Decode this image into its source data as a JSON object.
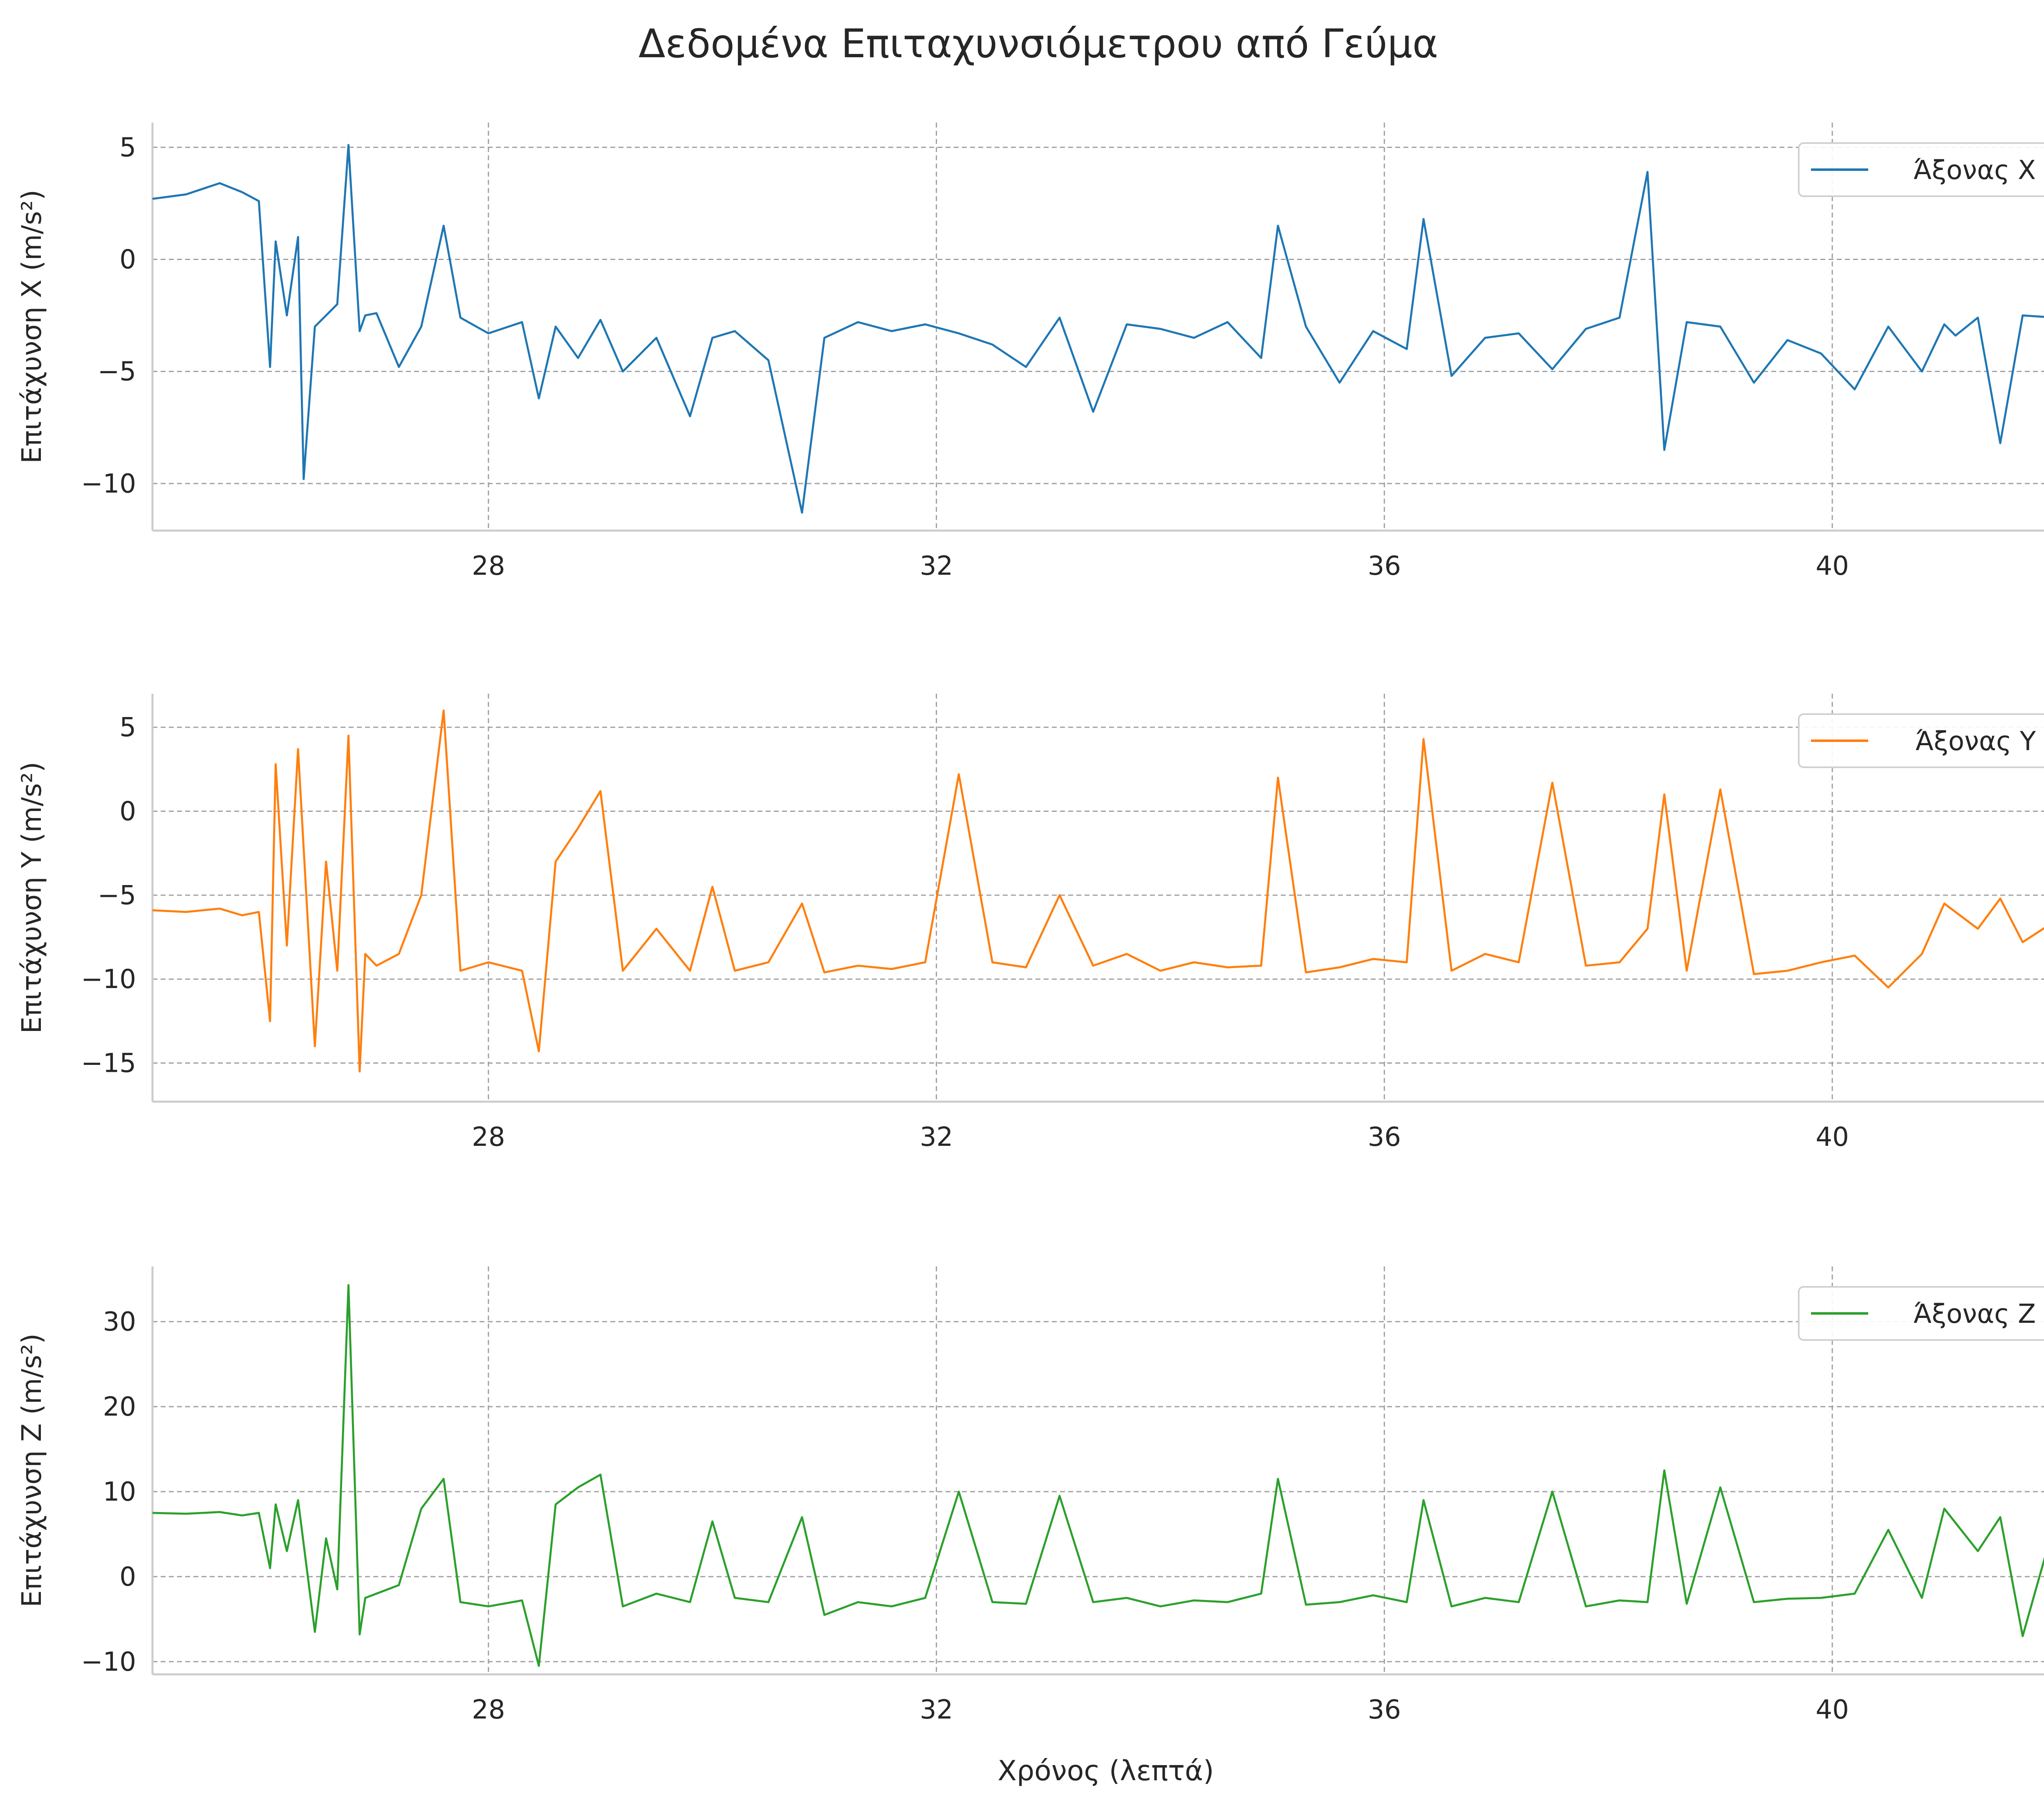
{
  "title": "Δεδομένα Επιταχυνσιόμετρου από Γεύμα",
  "xlabel": "Χρόνος (λεπτά)",
  "chart_data": [
    {
      "type": "line",
      "ylabel": "Επιτάχυνση X (m/s²)",
      "xlim": [
        25.0,
        42.0
      ],
      "ylim": [
        -12.1,
        6.1
      ],
      "x_ticks": [
        28,
        32,
        36,
        40
      ],
      "y_ticks": [
        5,
        0,
        -5,
        -10
      ],
      "grid": true,
      "legend_position": "top-right",
      "series": [
        {
          "name": "Άξονας X",
          "color": "#1f77b4",
          "x": [
            25.0,
            25.3,
            25.6,
            25.8,
            25.95,
            26.05,
            26.1,
            26.2,
            26.3,
            26.35,
            26.45,
            26.55,
            26.65,
            26.75,
            26.85,
            26.9,
            27.0,
            27.2,
            27.4,
            27.6,
            27.75,
            28.0,
            28.3,
            28.45,
            28.6,
            28.8,
            29.0,
            29.2,
            29.5,
            29.8,
            30.0,
            30.2,
            30.5,
            30.8,
            31.0,
            31.3,
            31.6,
            31.9,
            32.2,
            32.5,
            32.8,
            33.1,
            33.4,
            33.7,
            34.0,
            34.3,
            34.6,
            34.9,
            35.05,
            35.3,
            35.6,
            35.9,
            36.2,
            36.35,
            36.6,
            36.9,
            37.2,
            37.5,
            37.8,
            38.1,
            38.35,
            38.5,
            38.7,
            39.0,
            39.3,
            39.6,
            39.9,
            40.2,
            40.5,
            40.8,
            41.0,
            41.1,
            41.3,
            41.5,
            41.7,
            42.0
          ],
          "y": [
            2.7,
            2.9,
            3.4,
            3.0,
            2.6,
            -4.8,
            0.8,
            -2.5,
            1.0,
            -9.8,
            -3.0,
            -2.5,
            -2.0,
            5.1,
            -3.2,
            -2.5,
            -2.4,
            -4.8,
            -3.0,
            1.5,
            -2.6,
            -3.3,
            -2.8,
            -6.2,
            -3.0,
            -4.4,
            -2.7,
            -5.0,
            -3.5,
            -7.0,
            -3.5,
            -3.2,
            -4.5,
            -11.3,
            -3.5,
            -2.8,
            -3.2,
            -2.9,
            -3.3,
            -3.8,
            -4.8,
            -2.6,
            -6.8,
            -2.9,
            -3.1,
            -3.5,
            -2.8,
            -4.4,
            1.5,
            -3.0,
            -5.5,
            -3.2,
            -4.0,
            1.8,
            -5.2,
            -3.5,
            -3.3,
            -4.9,
            -3.1,
            -2.6,
            3.9,
            -8.5,
            -2.8,
            -3.0,
            -5.5,
            -3.6,
            -4.2,
            -5.8,
            -3.0,
            -5.0,
            -2.9,
            -3.4,
            -2.6,
            -8.2,
            -2.5,
            -2.6
          ]
        }
      ]
    },
    {
      "type": "line",
      "ylabel": "Επιτάχυνση Y (m/s²)",
      "xlim": [
        25.0,
        42.0
      ],
      "ylim": [
        -17.3,
        7.0
      ],
      "x_ticks": [
        28,
        32,
        36,
        40
      ],
      "y_ticks": [
        5,
        0,
        -5,
        -10,
        -15
      ],
      "grid": true,
      "legend_position": "top-right",
      "series": [
        {
          "name": "Άξονας Y",
          "color": "#ff7f0e",
          "x": [
            25.0,
            25.3,
            25.6,
            25.8,
            25.95,
            26.05,
            26.1,
            26.2,
            26.3,
            26.45,
            26.55,
            26.65,
            26.75,
            26.85,
            26.9,
            27.0,
            27.2,
            27.4,
            27.6,
            27.75,
            28.0,
            28.3,
            28.45,
            28.6,
            28.8,
            29.0,
            29.2,
            29.5,
            29.8,
            30.0,
            30.2,
            30.5,
            30.8,
            31.0,
            31.3,
            31.6,
            31.9,
            32.2,
            32.5,
            32.8,
            33.1,
            33.4,
            33.7,
            34.0,
            34.3,
            34.6,
            34.9,
            35.05,
            35.3,
            35.6,
            35.9,
            36.2,
            36.35,
            36.6,
            36.9,
            37.2,
            37.5,
            37.8,
            38.1,
            38.35,
            38.5,
            38.7,
            39.0,
            39.3,
            39.6,
            39.9,
            40.2,
            40.5,
            40.8,
            41.0,
            41.3,
            41.5,
            41.7,
            42.0
          ],
          "y": [
            -5.9,
            -6.0,
            -5.8,
            -6.2,
            -6.0,
            -12.5,
            2.8,
            -8.0,
            3.7,
            -14.0,
            -3.0,
            -9.5,
            4.5,
            -15.5,
            -8.5,
            -9.2,
            -8.5,
            -5.0,
            6.0,
            -9.5,
            -9.0,
            -9.5,
            -14.3,
            -3.0,
            -1.0,
            1.2,
            -9.5,
            -7.0,
            -9.5,
            -4.5,
            -9.5,
            -9.0,
            -5.5,
            -9.6,
            -9.2,
            -9.4,
            -9.0,
            2.2,
            -9.0,
            -9.3,
            -5.0,
            -9.2,
            -8.5,
            -9.5,
            -9.0,
            -9.3,
            -9.2,
            2.0,
            -9.6,
            -9.3,
            -8.8,
            -9.0,
            4.3,
            -9.5,
            -8.5,
            -9.0,
            1.7,
            -9.2,
            -9.0,
            -7.0,
            1.0,
            -9.5,
            1.3,
            -9.7,
            -9.5,
            -9.0,
            -8.6,
            -10.5,
            -8.5,
            -5.5,
            -7.0,
            -5.2,
            -7.8,
            -6.5
          ]
        }
      ]
    },
    {
      "type": "line",
      "ylabel": "Επιτάχυνση Z (m/s²)",
      "xlim": [
        25.0,
        42.0
      ],
      "ylim": [
        -11.5,
        36.5
      ],
      "x_ticks": [
        28,
        32,
        36,
        40
      ],
      "y_ticks": [
        30,
        20,
        10,
        0,
        -10
      ],
      "grid": true,
      "legend_position": "top-right",
      "series": [
        {
          "name": "Άξονας Z",
          "color": "#2ca02c",
          "x": [
            25.0,
            25.3,
            25.6,
            25.8,
            25.95,
            26.05,
            26.1,
            26.2,
            26.3,
            26.45,
            26.55,
            26.65,
            26.75,
            26.85,
            26.9,
            27.0,
            27.2,
            27.4,
            27.6,
            27.75,
            28.0,
            28.3,
            28.45,
            28.6,
            28.8,
            29.0,
            29.2,
            29.5,
            29.8,
            30.0,
            30.2,
            30.5,
            30.8,
            31.0,
            31.3,
            31.6,
            31.9,
            32.2,
            32.5,
            32.8,
            33.1,
            33.4,
            33.7,
            34.0,
            34.3,
            34.6,
            34.9,
            35.05,
            35.3,
            35.6,
            35.9,
            36.2,
            36.35,
            36.6,
            36.9,
            37.2,
            37.5,
            37.8,
            38.1,
            38.35,
            38.5,
            38.7,
            39.0,
            39.3,
            39.6,
            39.9,
            40.2,
            40.5,
            40.8,
            41.0,
            41.3,
            41.5,
            41.7,
            42.0
          ],
          "y": [
            7.5,
            7.4,
            7.6,
            7.2,
            7.5,
            1.0,
            8.5,
            3.0,
            9.0,
            -6.5,
            4.5,
            -1.5,
            34.3,
            -6.8,
            -2.5,
            -2.0,
            -1.0,
            8.0,
            11.5,
            -3.0,
            -3.5,
            -2.8,
            -10.5,
            8.5,
            10.5,
            12.0,
            -3.5,
            -2.0,
            -3.0,
            6.5,
            -2.5,
            -3.0,
            7.0,
            -4.5,
            -3.0,
            -3.5,
            -2.5,
            10.0,
            -3.0,
            -3.2,
            9.5,
            -3.0,
            -2.5,
            -3.5,
            -2.8,
            -3.0,
            -2.0,
            11.5,
            -3.3,
            -3.0,
            -2.2,
            -3.0,
            9.0,
            -3.5,
            -2.5,
            -3.0,
            10.0,
            -3.5,
            -2.8,
            -3.0,
            12.5,
            -3.2,
            10.5,
            -3.0,
            -2.6,
            -2.5,
            -2.0,
            5.5,
            -2.5,
            8.0,
            3.0,
            7.0,
            -7.0,
            7.0
          ]
        }
      ]
    }
  ]
}
